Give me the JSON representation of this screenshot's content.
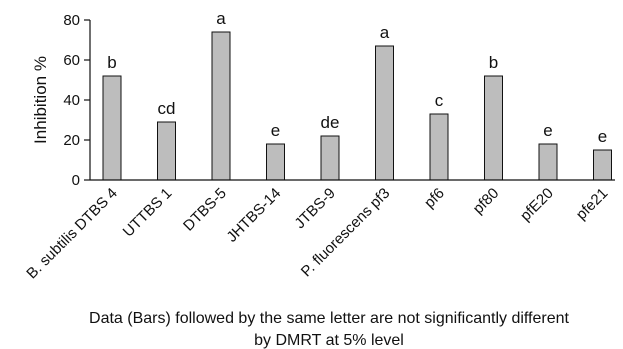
{
  "chart_data": {
    "type": "bar",
    "categories": [
      "B. subtilis DTBS 4",
      "UTTBS 1",
      "DTBS-5",
      "JHTBS-14",
      "JTBS-9",
      "P. fluorescens pf3",
      "pf6",
      "pf80",
      "pfE20",
      "pfe21"
    ],
    "values": [
      52,
      29,
      74,
      18,
      22,
      67,
      33,
      52,
      18,
      15
    ],
    "significance_letters": [
      "b",
      "cd",
      "a",
      "e",
      "de",
      "a",
      "c",
      "b",
      "e",
      "e"
    ],
    "ylabel": "Inhibition %",
    "xlabel": "",
    "ylim": [
      0,
      80
    ],
    "yticks": [
      0,
      20,
      40,
      60,
      80
    ],
    "grid": false,
    "bar_color": "#bdbdbd",
    "note_line1": "Data (Bars) followed by the same letter are not significantly different",
    "note_line2": "by DMRT at 5% level"
  }
}
